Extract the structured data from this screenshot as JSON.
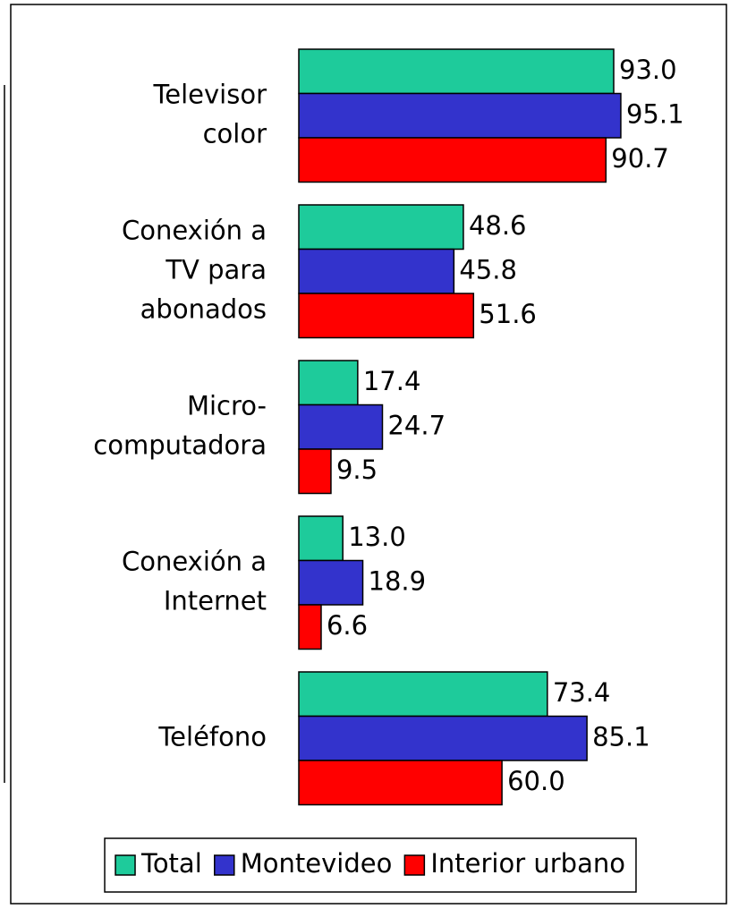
{
  "chart_data": {
    "type": "bar",
    "orientation": "horizontal",
    "categories": [
      [
        "Televisor",
        "color"
      ],
      [
        "Conexión a",
        "TV para",
        "abonados"
      ],
      [
        "Micro-",
        "computadora"
      ],
      [
        "Conexión a",
        "Internet"
      ],
      [
        "Teléfono"
      ]
    ],
    "series": [
      {
        "name": "Total",
        "color": "#1ecb9b",
        "values": [
          93.0,
          48.6,
          17.4,
          13.0,
          73.4
        ],
        "value_labels": [
          "93.0",
          "48.6",
          "17.4",
          "13.0",
          "73.4"
        ]
      },
      {
        "name": "Montevideo",
        "color": "#3333cc",
        "values": [
          95.1,
          45.8,
          24.7,
          18.9,
          85.1
        ],
        "value_labels": [
          "95.1",
          "45.8",
          "24.7",
          "18.9",
          "85.1"
        ]
      },
      {
        "name": "Interior urbano",
        "color": "#ff0000",
        "values": [
          90.7,
          51.6,
          9.5,
          6.6,
          60.0
        ],
        "value_labels": [
          "90.7",
          "51.6",
          "9.5",
          "6.6",
          "60.0"
        ]
      }
    ],
    "xlim": [
      0,
      100
    ],
    "legend": "bottom"
  }
}
